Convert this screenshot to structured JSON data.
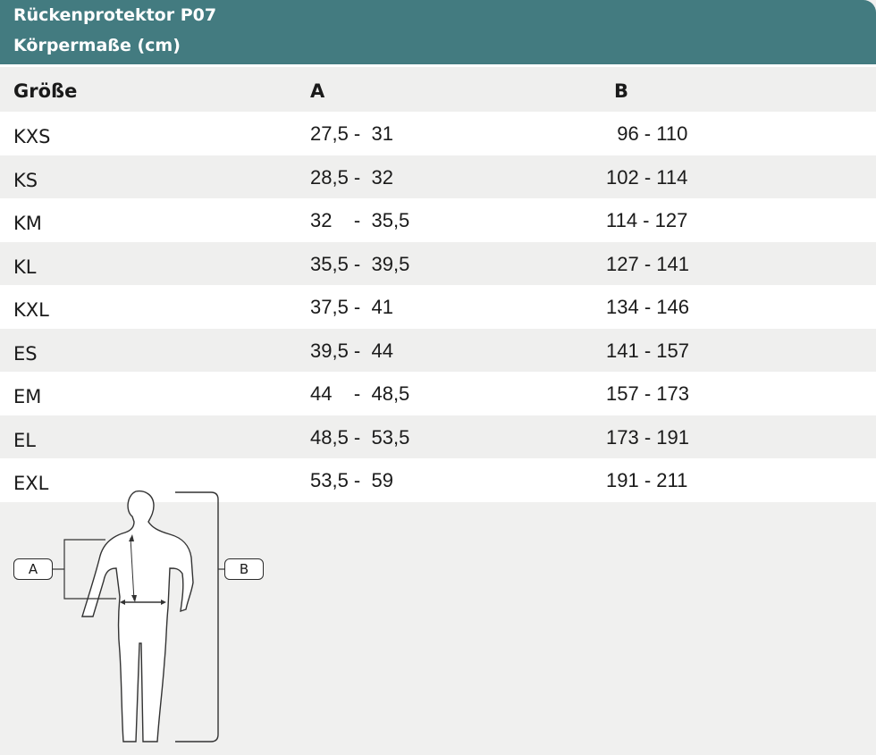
{
  "header": {
    "title": "Rückenprotektor P07",
    "subtitle": "Körpermaße (cm)"
  },
  "columns": {
    "size": "Größe",
    "a": "A",
    "b": "B"
  },
  "rows": [
    {
      "size": "KXS",
      "a": "27,5 -  31",
      "b": "  96 - 110"
    },
    {
      "size": "KS",
      "a": "28,5 -  32",
      "b": "102 - 114"
    },
    {
      "size": "KM",
      "a": "32    -  35,5",
      "b": "114 - 127"
    },
    {
      "size": "KL",
      "a": "35,5 -  39,5",
      "b": "127 - 141"
    },
    {
      "size": "KXL",
      "a": "37,5 -  41",
      "b": "134 - 146"
    },
    {
      "size": "ES",
      "a": "39,5 -  44",
      "b": "141 - 157"
    },
    {
      "size": "EM",
      "a": "44    -  48,5",
      "b": "157 - 173"
    },
    {
      "size": "EL",
      "a": "48,5 -  53,5",
      "b": "173 - 191"
    },
    {
      "size": "EXL",
      "a": "53,5 -  59",
      "b": "191 - 211"
    }
  ],
  "figure": {
    "label_a": "A",
    "label_b": "B"
  }
}
